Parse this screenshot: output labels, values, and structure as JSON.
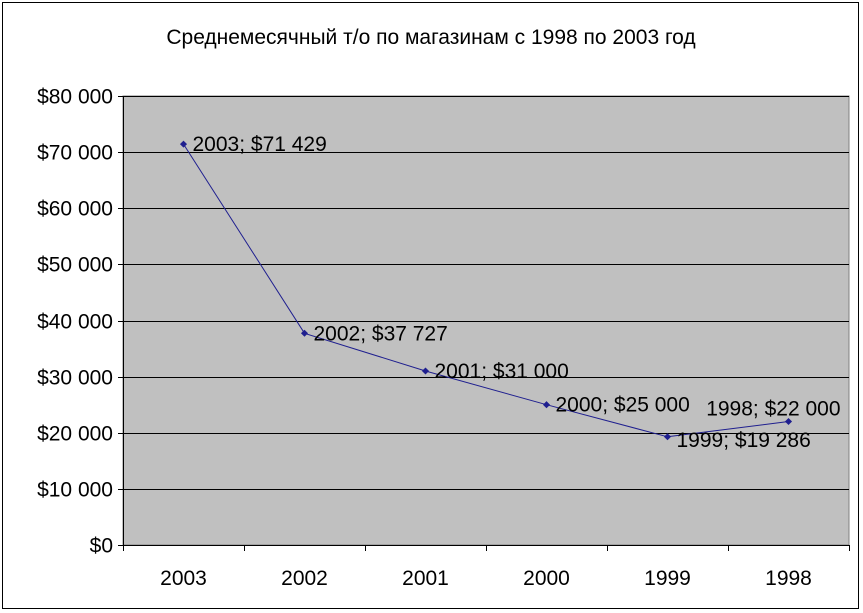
{
  "chart_data": {
    "type": "line",
    "title": "Среднемесячный т/о по магазинам с 1998 по 2003 год",
    "xlabel": "",
    "ylabel": "",
    "categories": [
      "2003",
      "2002",
      "2001",
      "2000",
      "1999",
      "1998"
    ],
    "series": [
      {
        "values": [
          71429,
          37727,
          31000,
          25000,
          19286,
          22000
        ],
        "color": "#1f1f8f"
      }
    ],
    "data_labels": [
      "2003; $71 429",
      "2002; $37 727",
      "2001; $31 000",
      "2000; $25 000",
      "1999; $19 286",
      "1998; $22 000"
    ],
    "y_ticks": [
      {
        "value": 0,
        "label": "$0"
      },
      {
        "value": 10000,
        "label": "$10 000"
      },
      {
        "value": 20000,
        "label": "$20 000"
      },
      {
        "value": 30000,
        "label": "$30 000"
      },
      {
        "value": 40000,
        "label": "$40 000"
      },
      {
        "value": 50000,
        "label": "$50 000"
      },
      {
        "value": 60000,
        "label": "$60 000"
      },
      {
        "value": 70000,
        "label": "$70 000"
      },
      {
        "value": 80000,
        "label": "$80 000"
      }
    ],
    "ylim": [
      0,
      80000
    ],
    "grid": true,
    "legend": "none",
    "plot_background": "#c0c0c0",
    "gridline_color": "#000000"
  }
}
